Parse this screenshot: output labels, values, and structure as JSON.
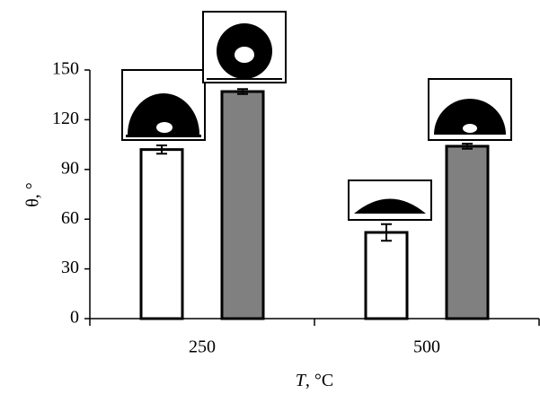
{
  "chart_data": {
    "type": "bar",
    "y_label": "θ, °",
    "x_label": "T, °C",
    "categories": [
      "250",
      "500"
    ],
    "series": [
      {
        "color": "#ffffff",
        "values": [
          102,
          52
        ],
        "errors": [
          2.5,
          5
        ]
      },
      {
        "color": "#808080",
        "values": [
          137,
          104
        ],
        "errors": [
          1.5,
          1.5
        ]
      }
    ],
    "ylim": [
      0,
      150
    ],
    "yticks": [
      0,
      30,
      60,
      90,
      120,
      150
    ]
  }
}
